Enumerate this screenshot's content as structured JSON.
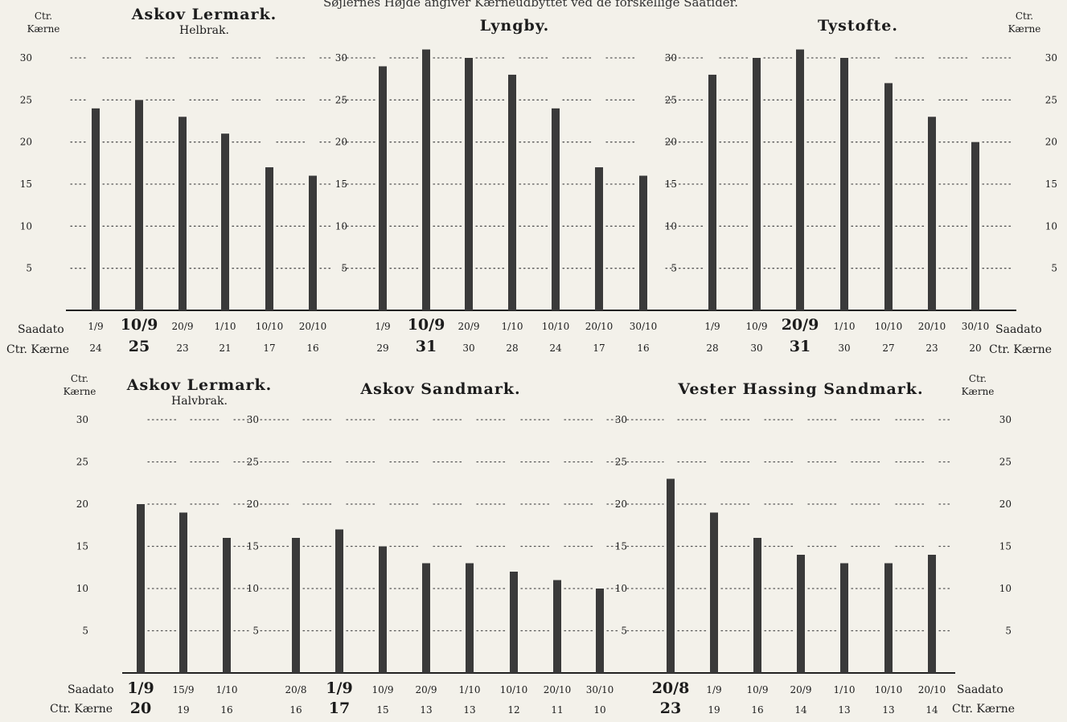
{
  "top_note": "Søjlernes Højde angiver Kærneudbyttet ved de forskellige Saatider.",
  "axis_unit": [
    "Ctr.",
    "Kærne"
  ],
  "row_labels": {
    "date": "Saadato",
    "value": "Ctr. Kærne"
  },
  "colors": {
    "bar": "#3a3a3a",
    "paper": "#f3f1ea",
    "ink": "#1c1c1c"
  },
  "chart_data": [
    {
      "type": "bar",
      "title": "Askov Lermark.",
      "subtitle": "Helbrak.",
      "ylim": [
        0,
        30
      ],
      "yticks": [
        5,
        10,
        15,
        20,
        25,
        30
      ],
      "grid": "dotted",
      "categories": [
        "1/9",
        "10/9",
        "20/9",
        "1/10",
        "10/10",
        "20/10"
      ],
      "values": [
        24,
        25,
        23,
        21,
        17,
        16
      ],
      "highlight_index": 1
    },
    {
      "type": "bar",
      "title": "Lyngby.",
      "ylim": [
        0,
        30
      ],
      "yticks": [
        5,
        10,
        15,
        20,
        25,
        30
      ],
      "grid": "dotted",
      "categories": [
        "1/9",
        "10/9",
        "20/9",
        "1/10",
        "10/10",
        "20/10",
        "30/10"
      ],
      "values": [
        29,
        31,
        30,
        28,
        24,
        17,
        16
      ],
      "highlight_index": 1
    },
    {
      "type": "bar",
      "title": "Tystofte.",
      "ylim": [
        0,
        30
      ],
      "yticks": [
        5,
        10,
        15,
        20,
        25,
        30
      ],
      "grid": "dotted",
      "categories": [
        "1/9",
        "10/9",
        "20/9",
        "1/10",
        "10/10",
        "20/10",
        "30/10"
      ],
      "values": [
        28,
        30,
        31,
        30,
        27,
        23,
        20
      ],
      "highlight_index": 2
    },
    {
      "type": "bar",
      "title": "Askov Lermark.",
      "subtitle": "Halvbrak.",
      "ylim": [
        0,
        30
      ],
      "yticks": [
        5,
        10,
        15,
        20,
        25,
        30
      ],
      "grid": "dotted",
      "categories": [
        "1/9",
        "15/9",
        "1/10"
      ],
      "values": [
        20,
        19,
        16
      ],
      "highlight_index": 0
    },
    {
      "type": "bar",
      "title": "Askov Sandmark.",
      "ylim": [
        0,
        30
      ],
      "yticks": [
        5,
        10,
        15,
        20,
        25,
        30
      ],
      "grid": "dotted",
      "categories": [
        "20/8",
        "1/9",
        "10/9",
        "20/9",
        "1/10",
        "10/10",
        "20/10",
        "30/10"
      ],
      "values": [
        16,
        17,
        15,
        13,
        13,
        12,
        11,
        10
      ],
      "highlight_index": 1
    },
    {
      "type": "bar",
      "title": "Vester Hassing Sandmark.",
      "ylim": [
        0,
        30
      ],
      "yticks": [
        5,
        10,
        15,
        20,
        25,
        30
      ],
      "grid": "dotted",
      "categories": [
        "20/8",
        "1/9",
        "10/9",
        "20/9",
        "1/10",
        "10/10",
        "20/10"
      ],
      "values": [
        23,
        19,
        16,
        14,
        13,
        13,
        14
      ],
      "highlight_index": 0
    }
  ]
}
